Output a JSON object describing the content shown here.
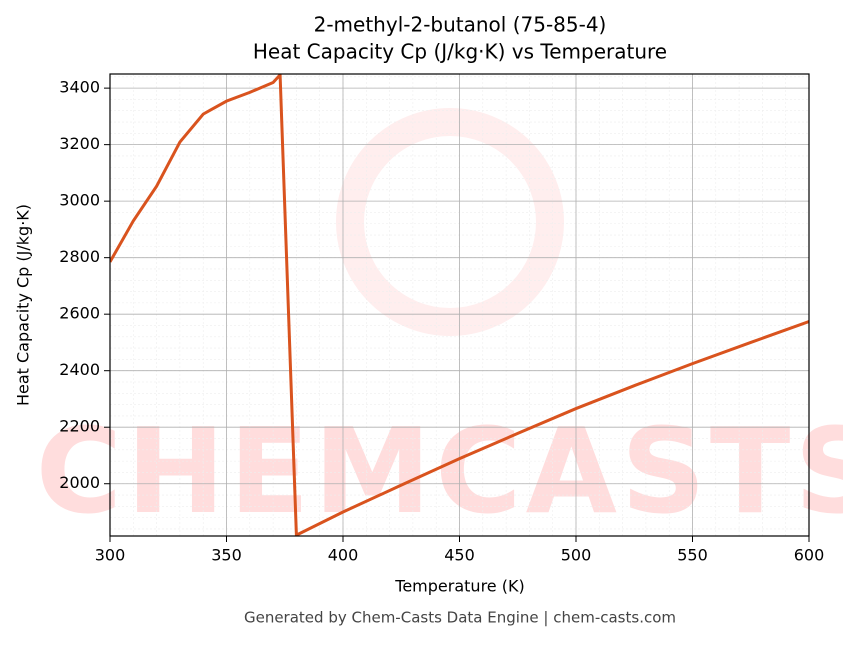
{
  "chart_data": {
    "type": "line",
    "title": [
      "2-methyl-2-butanol (75-85-4)",
      "Heat Capacity Cp (J/kg·K) vs Temperature"
    ],
    "xlabel": "Temperature (K)",
    "ylabel": "Heat Capacity Cp (J/kg·K)",
    "footer": "Generated by Chem-Casts Data Engine | chem-casts.com",
    "watermark": "CHEMCASTS",
    "x": [
      300,
      310,
      320,
      330,
      340,
      343,
      350,
      360,
      370,
      373,
      380,
      400,
      425,
      450,
      475,
      500,
      525,
      550,
      575,
      600
    ],
    "series": [
      {
        "name": "Cp",
        "color": "#d9531e",
        "values": [
          2785,
          2930,
          3053,
          3209,
          3308,
          3322,
          3354,
          3385,
          3420,
          3447,
          1818,
          1900,
          1995,
          2089,
          2178,
          2266,
          2347,
          2425,
          2500,
          2574
        ]
      }
    ],
    "xlim": [
      300,
      600
    ],
    "xticks": [
      300,
      350,
      400,
      450,
      500,
      550,
      600
    ],
    "ylim": [
      1815,
      3450
    ],
    "yticks": [
      2000,
      2200,
      2400,
      2600,
      2800,
      3000,
      3200,
      3400
    ],
    "grid": true
  }
}
